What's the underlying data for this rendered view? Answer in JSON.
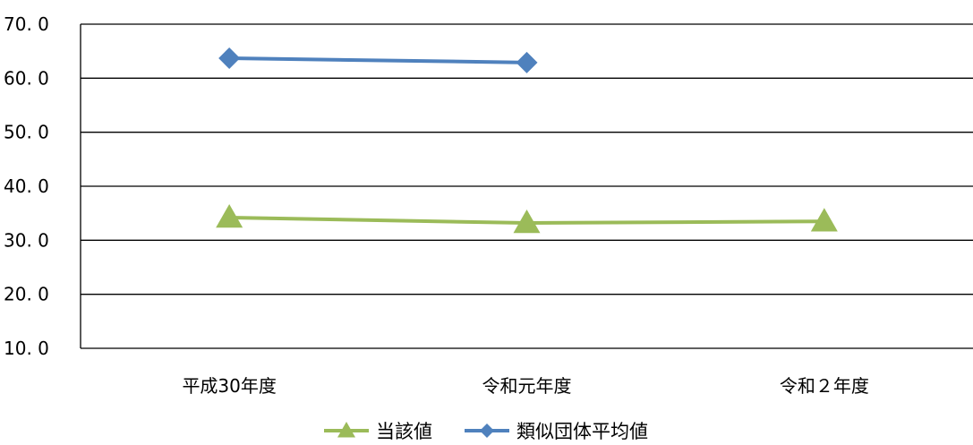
{
  "chart_data": {
    "type": "line",
    "title": "",
    "xlabel": "",
    "ylabel": "",
    "categories": [
      "平成30年度",
      "令和元年度",
      "令和２年度"
    ],
    "ylim": [
      10,
      70
    ],
    "yticks": [
      10,
      20,
      30,
      40,
      50,
      60,
      70
    ],
    "ytick_labels": [
      "10. 0",
      "20. 0",
      "30. 0",
      "40. 0",
      "50. 0",
      "60. 0",
      "70. 0"
    ],
    "grid": true,
    "legend_position": "bottom",
    "series": [
      {
        "name": "当該値",
        "values": [
          34.2,
          33.2,
          33.5
        ],
        "color": "#9bbb59",
        "marker": "triangle"
      },
      {
        "name": "類似団体平均値",
        "values": [
          63.7,
          62.9,
          null
        ],
        "color": "#4f81bd",
        "marker": "diamond"
      }
    ]
  }
}
